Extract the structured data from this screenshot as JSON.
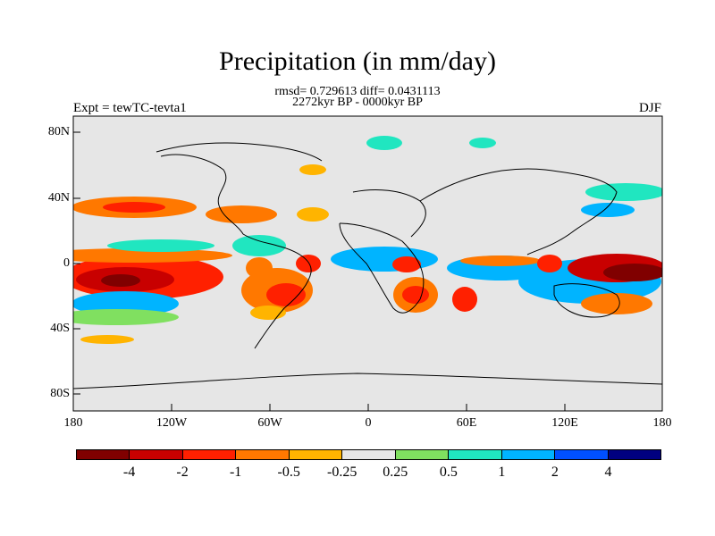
{
  "title": "Precipitation (in mm/day)",
  "stats_line": "rmsd= 0.729613 diff= 0.0431113",
  "period_line": "2272kyr BP - 0000kyr BP",
  "experiment_label": "Expt = tewTC-tevta1",
  "season_label": "DJF",
  "y_ticks": [
    "80N",
    "40N",
    "0",
    "40S",
    "80S"
  ],
  "x_ticks": [
    "180",
    "120W",
    "60W",
    "0",
    "60E",
    "120E",
    "180"
  ],
  "colorbar": {
    "colors": [
      "#800000",
      "#c80000",
      "#ff2000",
      "#ff7800",
      "#ffb400",
      "#e6e6e6",
      "#80e060",
      "#20e6c0",
      "#00b4ff",
      "#0050ff",
      "#000080"
    ],
    "labels": [
      "-4",
      "-2",
      "-1",
      "-0.5",
      "-0.25",
      "0.25",
      "0.5",
      "1",
      "2",
      "4"
    ]
  }
}
